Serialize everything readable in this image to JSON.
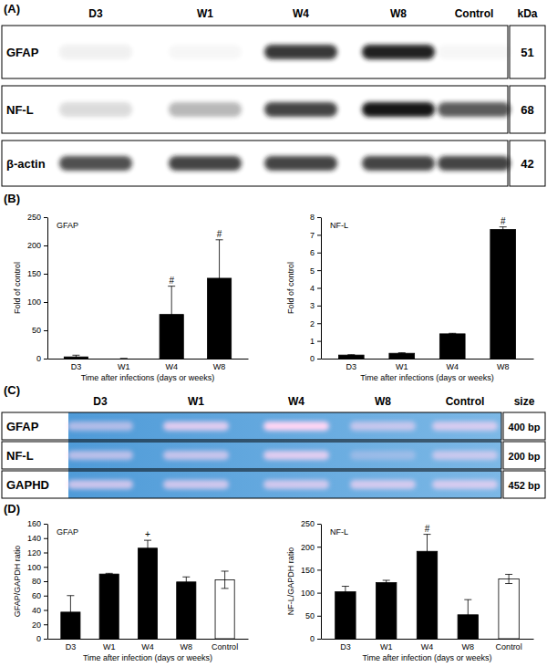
{
  "figure": {
    "blots": [
      {
        "label": "(A)",
        "style": "western",
        "columns": [
          "D3",
          "W1",
          "W4",
          "W8",
          "Control"
        ],
        "side_header": "kDa",
        "rows": [
          {
            "name": "GFAP",
            "size": "51",
            "intensity": [
              0.06,
              0.03,
              0.85,
              0.95,
              0.03
            ]
          },
          {
            "name": "NF-L",
            "size": "68",
            "intensity": [
              0.15,
              0.3,
              0.8,
              1.0,
              0.7
            ]
          },
          {
            "name": "β-actin",
            "size": "42",
            "intensity": [
              0.75,
              0.8,
              0.8,
              0.8,
              0.8
            ]
          }
        ]
      },
      {
        "label": "(C)",
        "style": "gel",
        "columns": [
          "D3",
          "W1",
          "W4",
          "W8",
          "Control"
        ],
        "side_header": "size",
        "rows": [
          {
            "name": "GFAP",
            "size": "400 bp",
            "intensity": [
              0.55,
              0.8,
              1.0,
              0.6,
              0.7
            ]
          },
          {
            "name": "NF-L",
            "size": "200 bp",
            "intensity": [
              0.6,
              0.65,
              0.8,
              0.3,
              0.6
            ]
          },
          {
            "name": "GAPHD",
            "size": "452 bp",
            "intensity": [
              0.7,
              0.7,
              0.7,
              0.7,
              0.7
            ]
          }
        ]
      }
    ],
    "chart_labels": [
      "(B)",
      "(D)"
    ]
  },
  "chart_data": [
    {
      "type": "bar",
      "title": "GFAP",
      "x_label": "Time after infections (days or weeks)",
      "y_label": "Fold of control",
      "categories": [
        "D3",
        "W1",
        "W4",
        "W8"
      ],
      "values": [
        3,
        0,
        78,
        142
      ],
      "error": [
        3,
        0,
        50,
        68
      ],
      "color": "#000000",
      "ylim": [
        0,
        250
      ],
      "yticks": [
        0,
        50,
        100,
        150,
        200,
        250
      ],
      "annotations": [
        {
          "text": "#",
          "x": "W4"
        },
        {
          "text": "#",
          "x": "W8"
        }
      ]
    },
    {
      "type": "bar",
      "title": "NF-L",
      "x_label": "Time after infections (days or weeks)",
      "y_label": "Fold of control",
      "categories": [
        "D3",
        "W1",
        "W4",
        "W8"
      ],
      "values": [
        0.2,
        0.3,
        1.4,
        7.3
      ],
      "error": [
        0.02,
        0.03,
        0.03,
        0.15
      ],
      "color": "#000000",
      "ylim": [
        0,
        8
      ],
      "yticks": [
        0,
        1,
        2,
        3,
        4,
        5,
        6,
        7,
        8
      ],
      "annotations": [
        {
          "text": "#",
          "x": "W8"
        }
      ]
    },
    {
      "type": "bar",
      "title": "GFAP",
      "x_label": "Time after infection (days or weeks)",
      "y_label": "GFAP/GAPDH ratio",
      "categories": [
        "D3",
        "W1",
        "W4",
        "W8",
        "Control"
      ],
      "values": [
        37,
        90,
        126,
        79,
        82
      ],
      "error": [
        23,
        1,
        11,
        7,
        12
      ],
      "colors": [
        "#000000",
        "#000000",
        "#000000",
        "#000000",
        "#ffffff"
      ],
      "ylim": [
        0,
        160
      ],
      "yticks": [
        0,
        20,
        40,
        60,
        80,
        100,
        120,
        140,
        160
      ],
      "annotations": [
        {
          "text": "+",
          "x": "W4"
        }
      ]
    },
    {
      "type": "bar",
      "title": "NF-L",
      "x_label": "Time after infection (days or weeks)",
      "y_label": "NF-L/GAPDH ratio",
      "categories": [
        "D3",
        "W1",
        "W4",
        "W8",
        "Control"
      ],
      "values": [
        102,
        122,
        190,
        52,
        130
      ],
      "error": [
        12,
        5,
        37,
        33,
        10
      ],
      "colors": [
        "#000000",
        "#000000",
        "#000000",
        "#000000",
        "#ffffff"
      ],
      "ylim": [
        0,
        250
      ],
      "yticks": [
        0,
        50,
        100,
        150,
        200,
        250
      ],
      "annotations": [
        {
          "text": "#",
          "x": "W4"
        }
      ]
    }
  ]
}
